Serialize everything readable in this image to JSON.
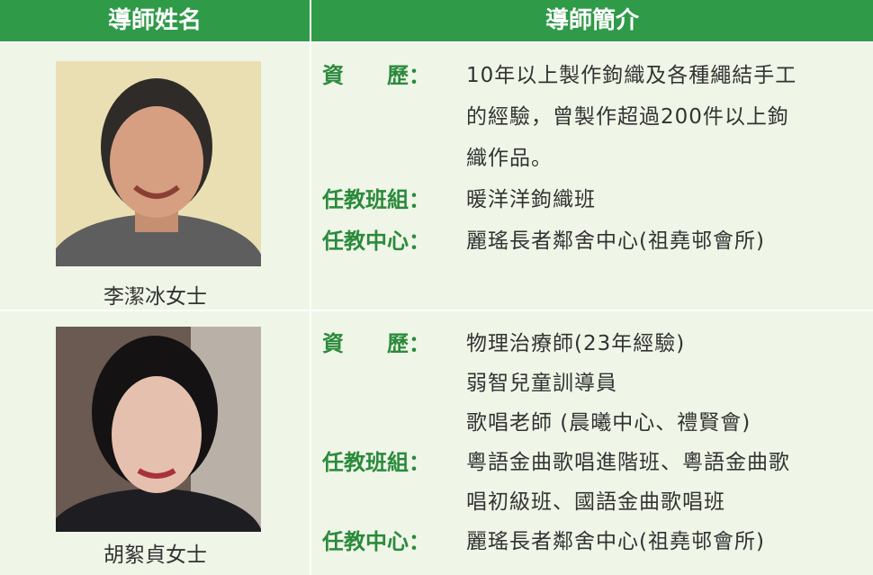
{
  "table": {
    "headers": [
      "導師姓名",
      "導師簡介"
    ],
    "rows": [
      {
        "name": "李潔冰女士",
        "details": [
          {
            "label": "資　　歷：",
            "lines": [
              "10年以上製作鉤織及各種繩結手工",
              "的經驗，曾製作超過200件以上鉤",
              "織作品。"
            ]
          },
          {
            "label": "任教班組：",
            "lines": [
              "暖洋洋鉤織班"
            ]
          },
          {
            "label": "任教中心：",
            "lines": [
              "麗瑤長者鄰舍中心(祖堯邨會所)"
            ]
          }
        ]
      },
      {
        "name": "胡絮貞女士",
        "details": [
          {
            "label": "資　　歷：",
            "lines": [
              "物理治療師(23年經驗)",
              "弱智兒童訓導員",
              "歌唱老師 (晨曦中心、禮賢會)"
            ]
          },
          {
            "label": "任教班組：",
            "lines": [
              "粵語金曲歌唱進階班、粵語金曲歌",
              "唱初級班、國語金曲歌唱班"
            ]
          },
          {
            "label": "任教中心：",
            "lines": [
              "麗瑤長者鄰舍中心(祖堯邨會所)"
            ]
          }
        ]
      }
    ]
  }
}
